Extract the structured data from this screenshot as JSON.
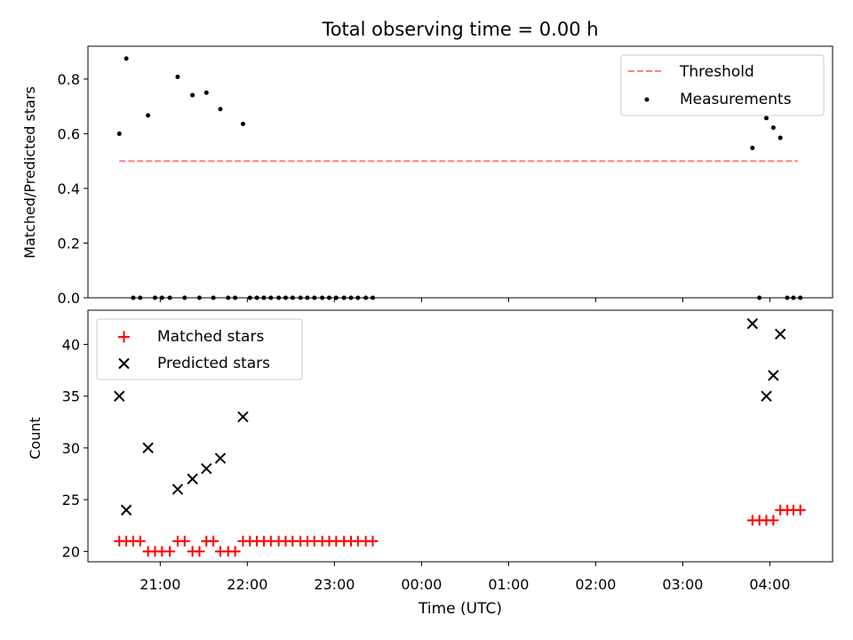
{
  "chart_data": [
    {
      "type": "scatter",
      "title": "Total observing time = 0.00 h",
      "ylabel": "Matched/Predicted stars",
      "xlabel": "",
      "ylim": [
        0,
        0.92
      ],
      "yticks": [
        0.0,
        0.2,
        0.4,
        0.6,
        0.8
      ],
      "ytick_labels": [
        "0.0",
        "0.2",
        "0.4",
        "0.6",
        "0.8"
      ],
      "legend_position": "top-right",
      "threshold": {
        "name": "Threshold",
        "value": 0.5,
        "x_range": [
          20.53,
          28.32
        ],
        "color": "#ff7f7f",
        "style": "dashed"
      },
      "series": [
        {
          "name": "Measurements",
          "color": "#000000",
          "marker": "dot",
          "x": [
            20.53,
            20.61,
            20.69,
            20.77,
            20.86,
            20.94,
            21.02,
            21.11,
            21.2,
            21.28,
            21.37,
            21.45,
            21.53,
            21.61,
            21.69,
            21.78,
            21.86,
            21.95,
            22.03,
            22.11,
            22.19,
            22.27,
            22.36,
            22.44,
            22.52,
            22.61,
            22.69,
            22.77,
            22.86,
            22.94,
            23.02,
            23.11,
            23.19,
            23.27,
            23.36,
            23.44,
            27.8,
            27.88,
            27.96,
            28.04,
            28.12,
            28.2,
            28.27,
            28.35
          ],
          "y": [
            0.6,
            0.875,
            0,
            0,
            0.667,
            0,
            0,
            0,
            0.808,
            0,
            0.741,
            0,
            0.75,
            0,
            0.69,
            0,
            0,
            0.636,
            0,
            0,
            0,
            0,
            0,
            0,
            0,
            0,
            0,
            0,
            0,
            0,
            0,
            0,
            0,
            0,
            0,
            0,
            0.548,
            0,
            0.657,
            0.622,
            0.585,
            0,
            0,
            0
          ]
        }
      ]
    },
    {
      "type": "scatter",
      "title": "",
      "ylabel": "Count",
      "xlabel": "Time (UTC)",
      "ylim": [
        19,
        43.3
      ],
      "yticks": [
        20,
        25,
        30,
        35,
        40
      ],
      "ytick_labels": [
        "20",
        "25",
        "30",
        "35",
        "40"
      ],
      "legend_position": "top-left",
      "series": [
        {
          "name": "Matched stars",
          "color": "#ff0000",
          "marker": "plus",
          "x": [
            20.53,
            20.61,
            20.69,
            20.77,
            20.86,
            20.94,
            21.02,
            21.11,
            21.2,
            21.28,
            21.37,
            21.45,
            21.53,
            21.61,
            21.69,
            21.78,
            21.86,
            21.95,
            22.03,
            22.11,
            22.19,
            22.27,
            22.36,
            22.44,
            22.52,
            22.61,
            22.69,
            22.77,
            22.86,
            22.94,
            23.02,
            23.11,
            23.19,
            23.27,
            23.36,
            23.44,
            27.8,
            27.88,
            27.96,
            28.04,
            28.12,
            28.2,
            28.27,
            28.35
          ],
          "y": [
            21,
            21,
            21,
            21,
            20,
            20,
            20,
            20,
            21,
            21,
            20,
            20,
            21,
            21,
            20,
            20,
            20,
            21,
            21,
            21,
            21,
            21,
            21,
            21,
            21,
            21,
            21,
            21,
            21,
            21,
            21,
            21,
            21,
            21,
            21,
            21,
            23,
            23,
            23,
            23,
            24,
            24,
            24,
            24
          ]
        },
        {
          "name": "Predicted stars",
          "color": "#000000",
          "marker": "x",
          "x": [
            20.53,
            20.61,
            20.86,
            21.2,
            21.37,
            21.53,
            21.69,
            21.95,
            27.8,
            27.96,
            28.04,
            28.12
          ],
          "y": [
            35,
            24,
            30,
            26,
            27,
            28,
            29,
            33,
            42,
            35,
            37,
            41
          ]
        }
      ]
    }
  ],
  "x_axis": {
    "range": [
      20.17,
      28.72
    ],
    "ticks": [
      21,
      22,
      23,
      24,
      25,
      26,
      27,
      28
    ],
    "tick_labels": [
      "21:00",
      "22:00",
      "23:00",
      "00:00",
      "01:00",
      "02:00",
      "03:00",
      "04:00"
    ]
  }
}
